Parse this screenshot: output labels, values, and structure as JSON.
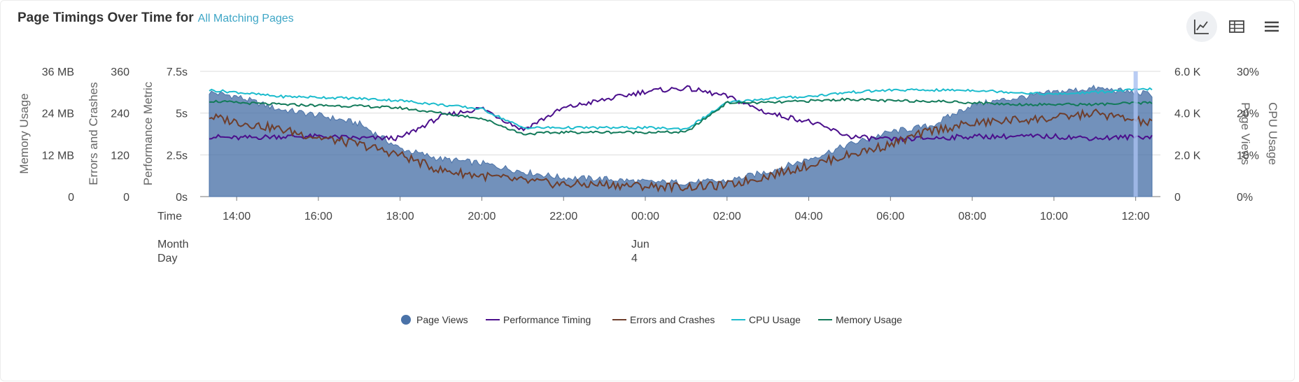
{
  "header": {
    "title": "Page Timings Over Time for",
    "filter_link": "All Matching Pages"
  },
  "toolbar": {
    "buttons": [
      {
        "name": "line-chart-view-button",
        "icon": "line-chart-icon",
        "active": true
      },
      {
        "name": "table-view-button",
        "icon": "table-icon",
        "active": false
      },
      {
        "name": "menu-button",
        "icon": "hamburger-menu-icon",
        "active": false
      }
    ]
  },
  "chart_data": {
    "type": "area",
    "x_unit": "hour",
    "x_range": [
      "13:22",
      "13:25"
    ],
    "x_tick_labels": [
      "14:00",
      "16:00",
      "18:00",
      "20:00",
      "22:00",
      "00:00",
      "02:00",
      "04:00",
      "06:00",
      "08:00",
      "10:00",
      "12:00"
    ],
    "x_row_labels": {
      "time": "Time",
      "month": "Month",
      "day": "Day"
    },
    "date_label": {
      "month": "Jun",
      "day": "4"
    },
    "y_axes": [
      {
        "id": "memory",
        "title": "Memory Usage",
        "side": "left",
        "ticks": [
          "0",
          "12 MB",
          "24 MB",
          "36 MB"
        ],
        "range": [
          0,
          36
        ]
      },
      {
        "id": "errors",
        "title": "Errors and Crashes",
        "side": "left",
        "ticks": [
          "0",
          "120",
          "240",
          "360"
        ],
        "range": [
          0,
          360
        ]
      },
      {
        "id": "perf",
        "title": "Performance Metric",
        "side": "left",
        "ticks": [
          "0s",
          "2.5s",
          "5s",
          "7.5s"
        ],
        "range": [
          0,
          7.5
        ]
      },
      {
        "id": "views",
        "title": "Page Views",
        "side": "right",
        "ticks": [
          "0",
          "2.0 K",
          "4.0 K",
          "6.0 K"
        ],
        "range": [
          0,
          6000
        ]
      },
      {
        "id": "cpu",
        "title": "CPU Usage",
        "side": "right",
        "ticks": [
          "0%",
          "10%",
          "20%",
          "30%"
        ],
        "range": [
          0,
          30
        ]
      }
    ],
    "x": [
      13.33,
      14.0,
      15.0,
      16.0,
      17.0,
      18.0,
      19.0,
      20.0,
      21.0,
      22.0,
      23.0,
      24.0,
      25.0,
      26.0,
      27.0,
      28.0,
      29.0,
      30.0,
      31.0,
      32.0,
      33.0,
      34.0,
      35.0,
      36.4
    ],
    "series": [
      {
        "name": "Page Views",
        "axis": "views",
        "type": "area",
        "color": "#4a72a8",
        "values": [
          5000,
          4800,
          4200,
          3900,
          3500,
          2300,
          1800,
          1600,
          1200,
          900,
          850,
          700,
          680,
          750,
          1200,
          1800,
          2500,
          3100,
          3400,
          4400,
          4700,
          5000,
          5200,
          4900
        ]
      },
      {
        "name": "Performance Timing",
        "axis": "perf",
        "type": "line",
        "color": "#4b0f8c",
        "values": [
          3.6,
          3.5,
          3.6,
          3.6,
          3.5,
          3.5,
          4.8,
          5.3,
          4.0,
          5.3,
          5.8,
          6.3,
          6.5,
          6.0,
          5.0,
          4.5,
          3.6,
          3.4,
          3.5,
          3.6,
          3.6,
          3.6,
          3.5,
          3.6
        ]
      },
      {
        "name": "Errors and Crashes",
        "axis": "errors",
        "type": "line",
        "color": "#6e3e2c",
        "values": [
          230,
          215,
          195,
          170,
          150,
          120,
          75,
          60,
          45,
          35,
          35,
          30,
          28,
          32,
          60,
          90,
          120,
          150,
          190,
          210,
          220,
          225,
          240,
          210
        ]
      },
      {
        "name": "CPU Usage",
        "axis": "cpu",
        "type": "line",
        "color": "#1cbccd",
        "values": [
          25.5,
          25.0,
          24.0,
          23.8,
          23.5,
          23.0,
          22.0,
          21.0,
          16.5,
          16.5,
          16.5,
          16.5,
          16.2,
          22.5,
          23.5,
          24.0,
          25.0,
          25.5,
          25.5,
          25.5,
          25.0,
          24.5,
          25.0,
          25.8
        ]
      },
      {
        "name": "Memory Usage",
        "axis": "memory",
        "type": "line",
        "color": "#137a5a",
        "values": [
          27.5,
          27.0,
          26.5,
          26.2,
          26.0,
          25.5,
          24.0,
          22.5,
          18.0,
          18.5,
          18.5,
          18.5,
          18.5,
          27.0,
          27.0,
          27.5,
          28.0,
          27.5,
          27.5,
          27.0,
          26.5,
          26.5,
          26.5,
          27.0
        ]
      }
    ],
    "legend": [
      "Page Views",
      "Performance Timing",
      "Errors and Crashes",
      "CPU Usage",
      "Memory Usage"
    ],
    "legend_position": "bottom",
    "highlight_x": 36.0,
    "highlight_color": "#a7bff0",
    "grid": true
  }
}
